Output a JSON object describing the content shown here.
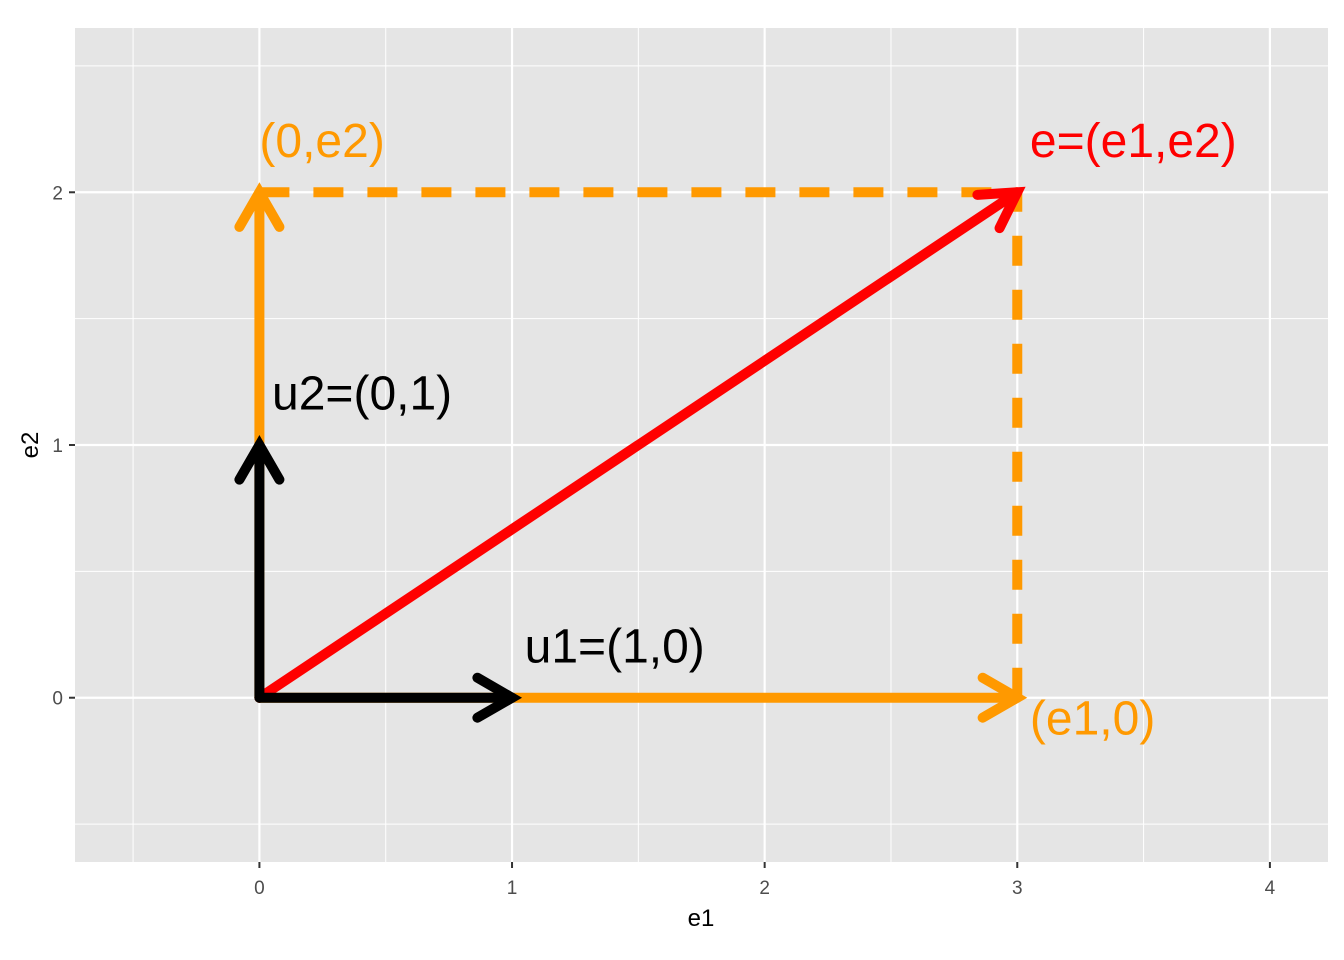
{
  "chart_data": {
    "type": "vector",
    "x_label": "e1",
    "y_label": "e2",
    "xlim": [
      -0.73,
      4.23
    ],
    "ylim": [
      -0.65,
      2.65
    ],
    "xticks": [
      0,
      1,
      2,
      3,
      4
    ],
    "yticks": [
      0,
      1,
      2
    ],
    "x_minor_breaks": [
      -0.5,
      0.5,
      1.5,
      2.5,
      3.5
    ],
    "y_minor_breaks": [
      -0.5,
      0.5,
      1.5,
      2.5
    ],
    "grid": true,
    "panel_color": "#e5e5e5",
    "segments": [
      {
        "x0": 0,
        "y0": 2,
        "x1": 3,
        "y1": 2,
        "color": "#FF9900",
        "dashed": true,
        "arrow": false
      },
      {
        "x0": 3,
        "y0": 0,
        "x1": 3,
        "y1": 2,
        "color": "#FF9900",
        "dashed": true,
        "arrow": false
      },
      {
        "x0": 0,
        "y0": 0,
        "x1": 3,
        "y1": 0,
        "color": "#FF9900",
        "dashed": false,
        "arrow": true
      },
      {
        "x0": 0,
        "y0": 0,
        "x1": 0,
        "y1": 2,
        "color": "#FF9900",
        "dashed": false,
        "arrow": true
      },
      {
        "x0": 0,
        "y0": 0,
        "x1": 3,
        "y1": 2,
        "color": "#FF0000",
        "dashed": false,
        "arrow": true
      },
      {
        "x0": 0,
        "y0": 0,
        "x1": 1,
        "y1": 0,
        "color": "#000000",
        "dashed": false,
        "arrow": true
      },
      {
        "x0": 0,
        "y0": 0,
        "x1": 0,
        "y1": 1,
        "color": "#000000",
        "dashed": false,
        "arrow": true
      }
    ],
    "annotations": [
      {
        "text": "(0,e2)",
        "x": 0,
        "y": 2.19,
        "color": "#FF9900"
      },
      {
        "text": "e=(e1,e2)",
        "x": 3.05,
        "y": 2.19,
        "color": "#FF0000"
      },
      {
        "text": "u2=(0,1)",
        "x": 0.05,
        "y": 1.19,
        "color": "#000000"
      },
      {
        "text": "u1=(1,0)",
        "x": 1.05,
        "y": 0.19,
        "color": "#000000"
      },
      {
        "text": "(e1,0)",
        "x": 3.05,
        "y": -0.095,
        "color": "#FF9900"
      }
    ]
  }
}
